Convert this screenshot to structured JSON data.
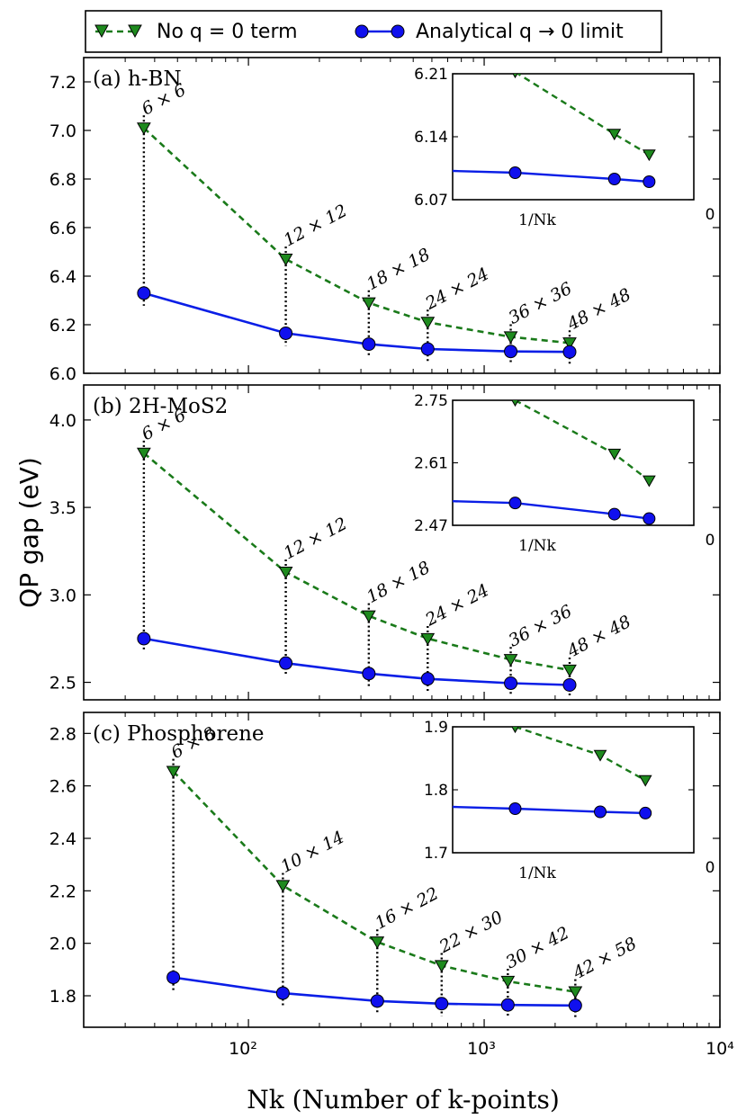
{
  "legend": {
    "placement": "top",
    "no_q_label": "No q = 0 term",
    "analytical_label": "Analytical q → 0 limit"
  },
  "colors": {
    "no_q": "#1a7a1a",
    "no_q_fill": "#1e8a1e",
    "analytical": "#0a1ee6",
    "analytical_fill": "#1010ee"
  },
  "ylabel": "QP gap (eV)",
  "xlabel": "Nk (Number of k-points)",
  "xtick_labels": [
    "10²",
    "10³",
    "10⁴"
  ],
  "inset_xlabel": "1/Nk",
  "inset_zero_label": "0",
  "chart_data": [
    {
      "type": "line",
      "panel": "(a) h-BN",
      "xscale": "log",
      "xlim": [
        20,
        10000
      ],
      "ylim": [
        6.0,
        7.3
      ],
      "yticks": [
        "6.0",
        "6.2",
        "6.4",
        "6.6",
        "6.8",
        "7.0",
        "7.2"
      ],
      "x": [
        36,
        144,
        324,
        576,
        1296,
        2304
      ],
      "grid_labels": [
        "6 × 6",
        "12 × 12",
        "18 × 18",
        "24 × 24",
        "36 × 36",
        "48 × 48"
      ],
      "series": [
        {
          "name": "No q = 0 term",
          "values": [
            7.01,
            6.47,
            6.29,
            6.21,
            6.15,
            6.125
          ]
        },
        {
          "name": "Analytical q → 0 limit",
          "values": [
            6.33,
            6.165,
            6.12,
            6.1,
            6.09,
            6.088
          ]
        }
      ],
      "inset": {
        "ylim": [
          6.07,
          6.21
        ],
        "yticks": [
          "6.07",
          "6.14",
          "6.21"
        ],
        "no_q_values": [
          6.212,
          6.143,
          6.12
        ],
        "analytical_values": [
          6.1,
          6.093,
          6.09
        ]
      }
    },
    {
      "type": "line",
      "panel": "(b) 2H-MoS2",
      "xscale": "log",
      "xlim": [
        20,
        10000
      ],
      "ylim": [
        2.4,
        4.2
      ],
      "yticks": [
        "2.5",
        "3.0",
        "3.5",
        "4.0"
      ],
      "x": [
        36,
        144,
        324,
        576,
        1296,
        2304
      ],
      "grid_labels": [
        "6 × 6",
        "12 × 12",
        "18 × 18",
        "24 × 24",
        "36 × 36",
        "48 × 48"
      ],
      "series": [
        {
          "name": "No q = 0 term",
          "values": [
            3.81,
            3.13,
            2.88,
            2.75,
            2.63,
            2.57
          ]
        },
        {
          "name": "Analytical q → 0 limit",
          "values": [
            2.75,
            2.61,
            2.55,
            2.52,
            2.495,
            2.485
          ]
        }
      ],
      "inset": {
        "ylim": [
          2.47,
          2.75
        ],
        "yticks": [
          "2.47",
          "2.61",
          "2.75"
        ],
        "no_q_values": [
          2.75,
          2.63,
          2.57
        ],
        "analytical_values": [
          2.52,
          2.495,
          2.485
        ]
      }
    },
    {
      "type": "line",
      "panel": "(c) Phosphorene",
      "xscale": "log",
      "xlim": [
        20,
        10000
      ],
      "ylim": [
        1.68,
        2.88
      ],
      "yticks": [
        "1.8",
        "2.0",
        "2.2",
        "2.4",
        "2.6",
        "2.8"
      ],
      "x": [
        48,
        140,
        352,
        660,
        1260,
        2436
      ],
      "grid_labels": [
        "6 × 8",
        "10 × 14",
        "16 × 22",
        "22 × 30",
        "30 × 42",
        "42 × 58"
      ],
      "series": [
        {
          "name": "No q = 0 term",
          "values": [
            2.655,
            2.22,
            2.005,
            1.915,
            1.855,
            1.815
          ]
        },
        {
          "name": "Analytical q → 0 limit",
          "values": [
            1.87,
            1.81,
            1.78,
            1.77,
            1.765,
            1.763
          ]
        }
      ],
      "inset": {
        "ylim": [
          1.7,
          1.9
        ],
        "yticks": [
          "1.7",
          "1.8",
          "1.9"
        ],
        "no_q_values": [
          1.9,
          1.855,
          1.815
        ],
        "analytical_values": [
          1.77,
          1.765,
          1.763
        ]
      }
    }
  ]
}
